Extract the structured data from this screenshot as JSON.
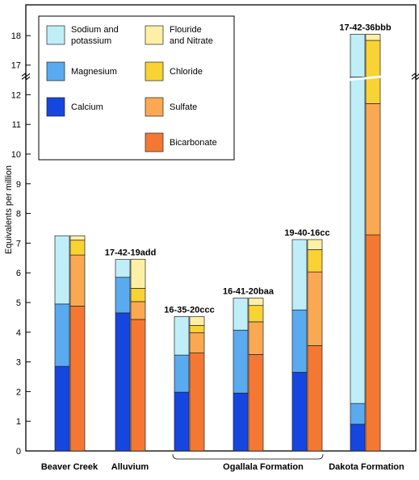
{
  "chart_data": {
    "type": "bar",
    "title": "",
    "ylabel": "Equivalents per million",
    "ylim": [
      0,
      18
    ],
    "axis_break": {
      "lower_max": 12.6,
      "upper_min": 16.6
    },
    "yticks": [
      0,
      1,
      2,
      3,
      4,
      5,
      6,
      7,
      8,
      9,
      10,
      11,
      12,
      17,
      18
    ],
    "colors": {
      "sodium_potassium": "#bfeef8",
      "magnesium": "#5aaaf0",
      "calcium": "#1646e0",
      "fluoride_nitrate": "#fdf0a6",
      "chloride": "#f9d233",
      "sulfate": "#fba852",
      "bicarbonate": "#f57832"
    },
    "legend": [
      {
        "key": "sodium_potassium",
        "lines": [
          "Sodium and",
          "potassium"
        ]
      },
      {
        "key": "magnesium",
        "lines": [
          "Magnesium"
        ]
      },
      {
        "key": "calcium",
        "lines": [
          "Calcium"
        ]
      },
      {
        "key": "fluoride_nitrate",
        "lines": [
          "Flouride",
          "and Nitrate"
        ]
      },
      {
        "key": "chloride",
        "lines": [
          "Chloride"
        ]
      },
      {
        "key": "sulfate",
        "lines": [
          "Sulfate"
        ]
      },
      {
        "key": "bicarbonate",
        "lines": [
          "Bicarbonate"
        ]
      }
    ],
    "samples": [
      {
        "label": "",
        "group": "Beaver Creek",
        "cations": {
          "calcium": 2.85,
          "magnesium": 2.1,
          "sodium_potassium": 2.3
        },
        "anions": {
          "bicarbonate": 4.88,
          "sulfate": 1.72,
          "chloride": 0.5,
          "fluoride_nitrate": 0.15
        }
      },
      {
        "label": "17-42-19add",
        "group": "Alluvium",
        "cations": {
          "calcium": 4.65,
          "magnesium": 1.2,
          "sodium_potassium": 0.6
        },
        "anions": {
          "bicarbonate": 4.43,
          "sulfate": 0.6,
          "chloride": 0.45,
          "fluoride_nitrate": 0.98
        }
      },
      {
        "label": "16-35-20ccc",
        "group": "Ogallala Formation",
        "cations": {
          "calcium": 1.98,
          "magnesium": 1.25,
          "sodium_potassium": 1.3
        },
        "anions": {
          "bicarbonate": 3.3,
          "sulfate": 0.68,
          "chloride": 0.25,
          "fluoride_nitrate": 0.3
        }
      },
      {
        "label": "16-41-20baa",
        "group": "Ogallala Formation",
        "cations": {
          "calcium": 1.95,
          "magnesium": 2.12,
          "sodium_potassium": 1.08
        },
        "anions": {
          "bicarbonate": 3.25,
          "sulfate": 1.1,
          "chloride": 0.55,
          "fluoride_nitrate": 0.25
        }
      },
      {
        "label": "19-40-16cc",
        "group": "Ogallala Formation",
        "cations": {
          "calcium": 2.65,
          "magnesium": 2.1,
          "sodium_potassium": 2.37
        },
        "anions": {
          "bicarbonate": 3.55,
          "sulfate": 2.48,
          "chloride": 0.75,
          "fluoride_nitrate": 0.34
        }
      },
      {
        "label": "17-42-36bbb",
        "group": "Dakota Formation",
        "cations": {
          "calcium": 0.9,
          "magnesium": 0.7,
          "sodium_potassium": 16.45
        },
        "anions": {
          "bicarbonate": 7.28,
          "sulfate": 4.42,
          "chloride": 6.14,
          "fluoride_nitrate": 0.21
        }
      }
    ],
    "groups": [
      "Beaver Creek",
      "Alluvium",
      "Ogallala Formation",
      "Dakota Formation"
    ]
  }
}
